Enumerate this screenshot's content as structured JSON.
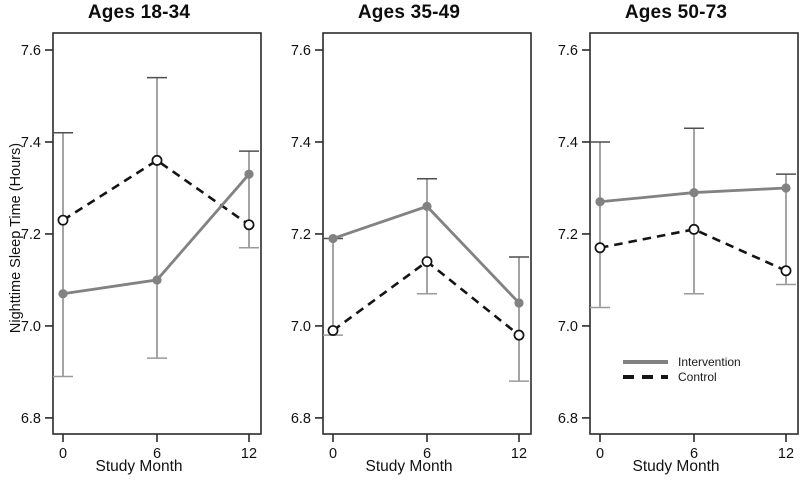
{
  "chart_data": {
    "type": "line",
    "x": [
      0,
      6,
      12
    ],
    "xlabel": "Study Month",
    "ylabel": "Nighttime Sleep Time (Hours)",
    "yticks": [
      6.8,
      7.0,
      7.2,
      7.4,
      7.6
    ],
    "ylim": [
      6.765,
      7.637
    ],
    "grid": false,
    "error_bars": true,
    "legend_position": "inside bottom-right of third panel",
    "panels": [
      {
        "title": "Ages 18-34",
        "series": [
          {
            "name": "Intervention",
            "values": [
              7.07,
              7.1,
              7.33
            ]
          },
          {
            "name": "Control",
            "values": [
              7.23,
              7.36,
              7.22
            ]
          }
        ],
        "error_lo": [
          6.89,
          6.93,
          7.17
        ],
        "error_hi": [
          7.42,
          7.54,
          7.38
        ]
      },
      {
        "title": "Ages 35-49",
        "series": [
          {
            "name": "Intervention",
            "values": [
              7.19,
              7.26,
              7.05
            ]
          },
          {
            "name": "Control",
            "values": [
              6.99,
              7.14,
              6.98
            ]
          }
        ],
        "error_lo": [
          6.98,
          7.07,
          6.88
        ],
        "error_hi": [
          7.19,
          7.32,
          7.15
        ]
      },
      {
        "title": "Ages 50-73",
        "series": [
          {
            "name": "Intervention",
            "values": [
              7.27,
              7.29,
              7.3
            ]
          },
          {
            "name": "Control",
            "values": [
              7.17,
              7.21,
              7.12
            ]
          }
        ],
        "error_lo": [
          7.04,
          7.07,
          7.09
        ],
        "error_hi": [
          7.4,
          7.43,
          7.33
        ]
      }
    ],
    "legend": {
      "entries": [
        {
          "label": "Intervention",
          "line": "solid",
          "color": "#828282",
          "marker": "filled-circle"
        },
        {
          "label": "Control",
          "line": "dashed",
          "color": "#141414",
          "marker": "open-circle"
        }
      ]
    }
  },
  "colors": {
    "intervention": "#828282",
    "control": "#141414",
    "error_bar": "#6e6e6e",
    "axis": "#2b2b2b",
    "background": "#ffffff"
  }
}
